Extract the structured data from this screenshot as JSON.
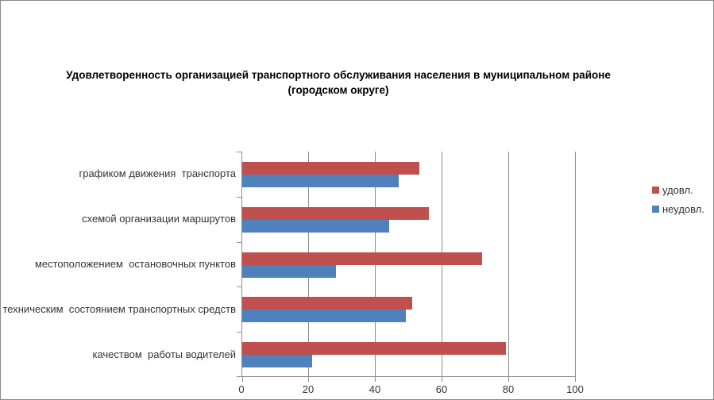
{
  "chart_data": {
    "type": "bar",
    "orientation": "horizontal",
    "title": "Удовлетворенность организацией транспортного обслуживания населения в муниципальном районе (городском округе)",
    "title_lines": [
      "Удовлетворенность организацией транспортного обслуживания населения в муниципальном районе",
      "(городском округе)"
    ],
    "categories": [
      "графиком движения  транспорта",
      "схемой организации маршрутов",
      "местоположением  остановочных пунктов",
      "техническим  состоянием транспортных средств",
      "качеством  работы водителей"
    ],
    "series": [
      {
        "name": "удовл.",
        "color": "#C0504D",
        "values": [
          53,
          56,
          72,
          51,
          79
        ]
      },
      {
        "name": "неудовл.",
        "color": "#4F81BD",
        "values": [
          47,
          44,
          28,
          49,
          21
        ]
      }
    ],
    "xlim": [
      0,
      100
    ],
    "xticks": [
      0,
      20,
      40,
      60,
      80,
      100
    ],
    "grid": true,
    "legend_position": "right"
  },
  "colors": {
    "axis": "#8e8e8e",
    "gridline": "#8e8e8e",
    "canvas_border": "#8a8a8a",
    "text": "#333333",
    "title_text": "#000000",
    "background": "#ffffff"
  }
}
